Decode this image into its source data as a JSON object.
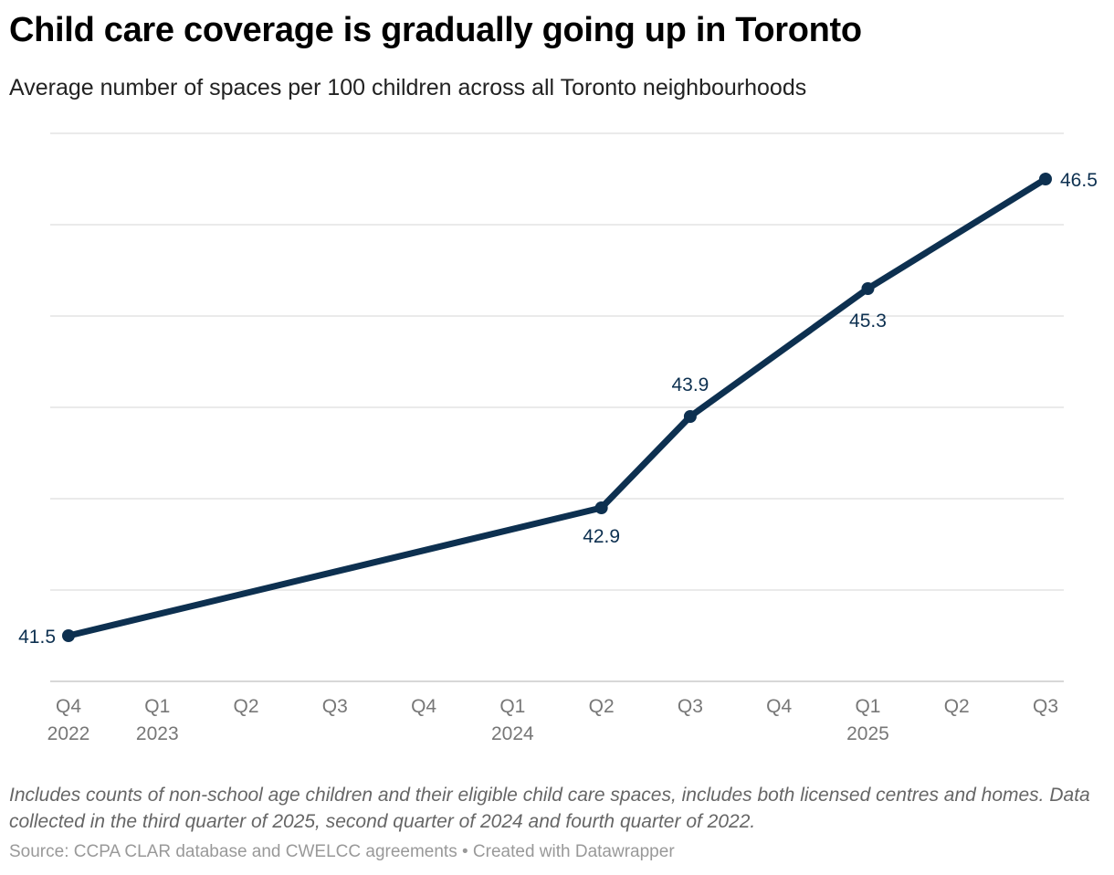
{
  "title": "Child care coverage is gradually going up in Toronto",
  "subtitle": "Average number of spaces per 100 children across all Toronto neighbourhoods",
  "notes": "Includes counts of non-school age children and their eligible child care spaces, includes both licensed centres and homes. Data collected in the third quarter of 2025, second quarter of 2024 and fourth quarter of 2022.",
  "source": "Source: CCPA CLAR database and CWELCC agreements • Created with Datawrapper",
  "chart_data": {
    "type": "line",
    "categories": [
      "Q4 2022",
      "Q1 2023",
      "Q2 2023",
      "Q3 2023",
      "Q4 2023",
      "Q1 2024",
      "Q2 2024",
      "Q3 2024",
      "Q4 2024",
      "Q1 2025",
      "Q2 2025",
      "Q3 2025"
    ],
    "tick_labels": [
      [
        "Q4",
        "2022"
      ],
      [
        "Q1",
        "2023"
      ],
      [
        "Q2",
        ""
      ],
      [
        "Q3",
        ""
      ],
      [
        "Q4",
        ""
      ],
      [
        "Q1",
        "2024"
      ],
      [
        "Q2",
        ""
      ],
      [
        "Q3",
        ""
      ],
      [
        "Q4",
        ""
      ],
      [
        "Q1",
        "2025"
      ],
      [
        "Q2",
        ""
      ],
      [
        "Q3",
        ""
      ]
    ],
    "series": [
      {
        "values": [
          41.5,
          null,
          null,
          null,
          null,
          null,
          42.9,
          43.9,
          null,
          45.3,
          null,
          46.5
        ],
        "color": "#0d3050"
      }
    ],
    "data_labels": [
      "41.5",
      "42.9",
      "43.9",
      "45.3",
      "46.5"
    ],
    "ylim": [
      41,
      47
    ],
    "gridlines": [
      41,
      42,
      43,
      44,
      45,
      46,
      47
    ],
    "grid": true,
    "y_tick_labels_shown": false,
    "xlabel": "",
    "ylabel": ""
  }
}
